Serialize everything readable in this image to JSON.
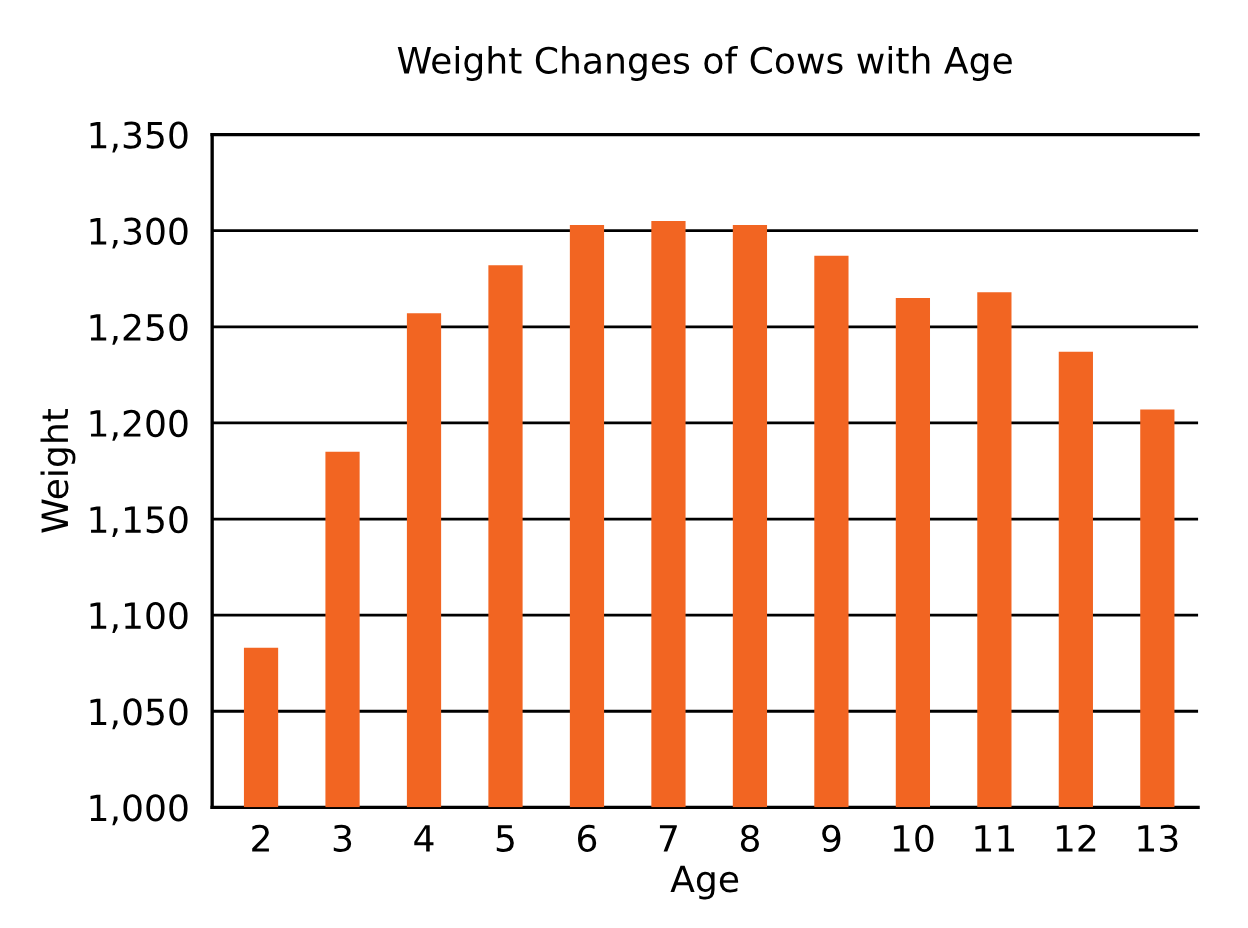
{
  "chart_data": {
    "type": "bar",
    "title": "Weight Changes of Cows with Age",
    "xlabel": "Age",
    "ylabel": "Weight",
    "categories": [
      "2",
      "3",
      "4",
      "5",
      "6",
      "7",
      "8",
      "9",
      "10",
      "11",
      "12",
      "13"
    ],
    "values": [
      1083,
      1185,
      1257,
      1282,
      1303,
      1305,
      1303,
      1287,
      1265,
      1268,
      1237,
      1207
    ],
    "color": "#f26522",
    "ylim": [
      1000,
      1350
    ],
    "yticks": [
      {
        "value": 1000,
        "label": "1,000"
      },
      {
        "value": 1050,
        "label": "1,050"
      },
      {
        "value": 1100,
        "label": "1,100"
      },
      {
        "value": 1150,
        "label": "1,150"
      },
      {
        "value": 1200,
        "label": "1,200"
      },
      {
        "value": 1250,
        "label": "1,250"
      },
      {
        "value": 1300,
        "label": "1,300"
      },
      {
        "value": 1350,
        "label": "1,350"
      }
    ],
    "grid": "y"
  }
}
